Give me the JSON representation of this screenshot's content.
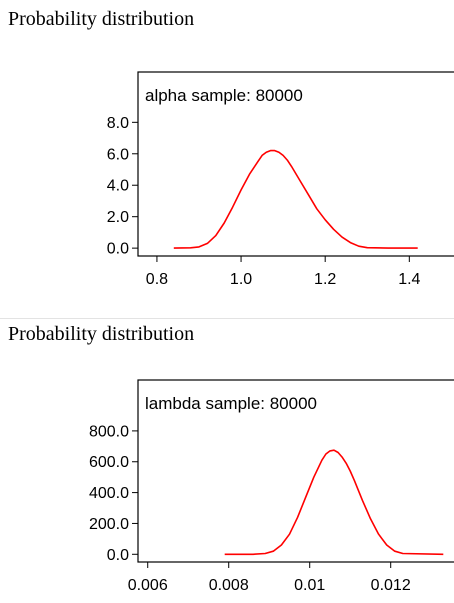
{
  "panels": [
    {
      "heading": "Probability distribution"
    },
    {
      "heading": "Probability distribution"
    }
  ],
  "chart_data": [
    {
      "type": "line",
      "title": "alpha sample: 80000",
      "xlabel": "",
      "ylabel": "",
      "xlim": [
        0.755,
        1.53
      ],
      "ylim": [
        -0.5,
        11.2
      ],
      "x_ticks": [
        0.8,
        1.0,
        1.2,
        1.4
      ],
      "x_tick_labels": [
        "0.8",
        "1.0",
        "1.2",
        "1.4"
      ],
      "y_ticks": [
        0.0,
        2.0,
        4.0,
        6.0,
        8.0
      ],
      "y_tick_labels": [
        "0.0",
        "2.0",
        "4.0",
        "6.0",
        "8.0"
      ],
      "grid": false,
      "series": [
        {
          "color": "#ff0000",
          "x": [
            0.84,
            0.88,
            0.9,
            0.92,
            0.94,
            0.96,
            0.98,
            1.0,
            1.02,
            1.04,
            1.05,
            1.06,
            1.07,
            1.08,
            1.09,
            1.1,
            1.11,
            1.12,
            1.14,
            1.16,
            1.18,
            1.2,
            1.22,
            1.24,
            1.26,
            1.28,
            1.3,
            1.35,
            1.42
          ],
          "y": [
            0.0,
            0.02,
            0.08,
            0.3,
            0.8,
            1.6,
            2.6,
            3.7,
            4.7,
            5.5,
            5.9,
            6.1,
            6.2,
            6.2,
            6.1,
            5.9,
            5.6,
            5.2,
            4.3,
            3.4,
            2.5,
            1.8,
            1.2,
            0.7,
            0.35,
            0.12,
            0.03,
            0.0,
            0.0
          ]
        }
      ]
    },
    {
      "type": "line",
      "title": "lambda sample: 80000",
      "xlabel": "",
      "ylabel": "",
      "xlim": [
        0.00576,
        0.01381
      ],
      "ylim": [
        -50,
        1130
      ],
      "x_ticks": [
        0.006,
        0.008,
        0.01,
        0.012
      ],
      "x_tick_labels": [
        "0.006",
        "0.008",
        "0.01",
        "0.012"
      ],
      "y_ticks": [
        0.0,
        200.0,
        400.0,
        600.0,
        800.0
      ],
      "y_tick_labels": [
        "0.0",
        "200.0",
        "400.0",
        "600.0",
        "800.0"
      ],
      "grid": false,
      "series": [
        {
          "color": "#ff0000",
          "x": [
            0.0079,
            0.0086,
            0.0089,
            0.0091,
            0.0093,
            0.0095,
            0.0097,
            0.0099,
            0.0101,
            0.0103,
            0.0104,
            0.0105,
            0.0106,
            0.0107,
            0.0108,
            0.0109,
            0.011,
            0.0111,
            0.0113,
            0.0115,
            0.0117,
            0.0119,
            0.0121,
            0.0123,
            0.0133
          ],
          "y": [
            0,
            0,
            5,
            20,
            60,
            130,
            240,
            370,
            500,
            610,
            650,
            670,
            675,
            660,
            630,
            590,
            540,
            480,
            350,
            230,
            130,
            60,
            20,
            5,
            0
          ]
        }
      ]
    }
  ]
}
